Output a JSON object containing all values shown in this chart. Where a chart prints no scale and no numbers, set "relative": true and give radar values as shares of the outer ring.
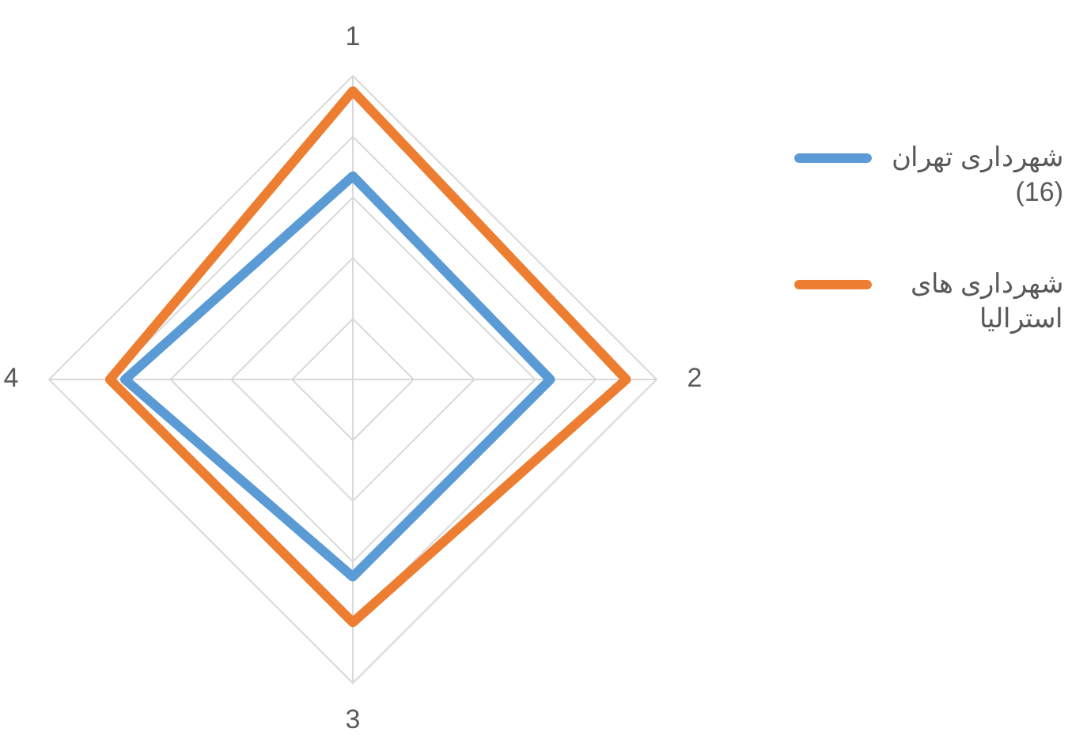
{
  "chart_data": {
    "type": "radar",
    "relative": true,
    "categories": [
      "1",
      "2",
      "3",
      "4"
    ],
    "grid": true,
    "legend": "right",
    "series": [
      {
        "name": "شهرداری تهران (16)",
        "color": "#5b9bd5",
        "values": [
          0.67,
          0.65,
          0.65,
          0.75
        ]
      },
      {
        "name": "شهرداری های استرالیا",
        "color": "#ed7d31",
        "values": [
          0.95,
          0.9,
          0.8,
          0.8
        ]
      }
    ]
  }
}
